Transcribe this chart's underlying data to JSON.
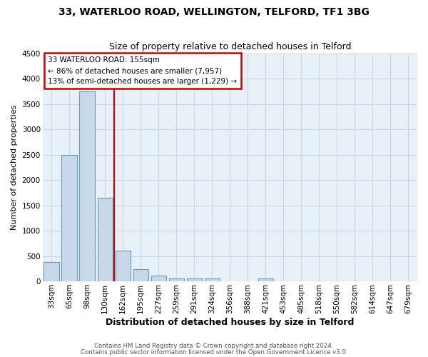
{
  "title1": "33, WATERLOO ROAD, WELLINGTON, TELFORD, TF1 3BG",
  "title2": "Size of property relative to detached houses in Telford",
  "xlabel": "Distribution of detached houses by size in Telford",
  "ylabel": "Number of detached properties",
  "categories": [
    "33sqm",
    "65sqm",
    "98sqm",
    "130sqm",
    "162sqm",
    "195sqm",
    "227sqm",
    "259sqm",
    "291sqm",
    "324sqm",
    "356sqm",
    "388sqm",
    "421sqm",
    "453sqm",
    "485sqm",
    "518sqm",
    "550sqm",
    "582sqm",
    "614sqm",
    "647sqm",
    "679sqm"
  ],
  "values": [
    380,
    2500,
    3750,
    1650,
    600,
    240,
    110,
    60,
    50,
    50,
    0,
    0,
    60,
    0,
    0,
    0,
    0,
    0,
    0,
    0,
    0
  ],
  "bar_color": "#c8d8ea",
  "bar_edge_color": "#6699bb",
  "vline_index": 3.5,
  "vline_color": "#cc0000",
  "ylim_min": 0,
  "ylim_max": 4500,
  "yticks": [
    0,
    500,
    1000,
    1500,
    2000,
    2500,
    3000,
    3500,
    4000,
    4500
  ],
  "annotation_title": "33 WATERLOO ROAD: 155sqm",
  "annotation_line1": "← 86% of detached houses are smaller (7,957)",
  "annotation_line2": "13% of semi-detached houses are larger (1,229) →",
  "annotation_box_edgecolor": "#cc0000",
  "grid_color": "#c5d8ea",
  "bg_color": "#e8f0f8",
  "footer1": "Contains HM Land Registry data © Crown copyright and database right 2024.",
  "footer2": "Contains public sector information licensed under the Open Government Licence v3.0.",
  "title1_fontsize": 10,
  "title2_fontsize": 9,
  "ylabel_fontsize": 8,
  "xlabel_fontsize": 9,
  "tick_fontsize": 7.5,
  "footer_fontsize": 6.2,
  "ann_fontsize": 7.5
}
